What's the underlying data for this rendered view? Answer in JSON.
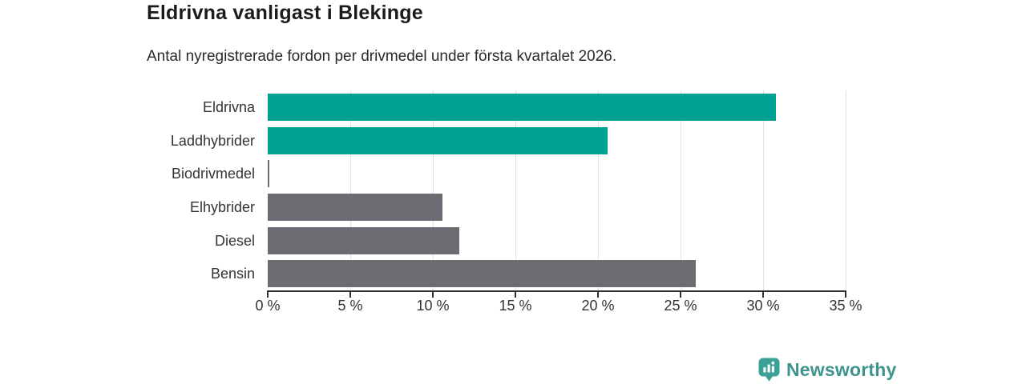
{
  "header": {
    "title": "Eldrivna vanligast i Blekinge",
    "subtitle": "Antal nyregistrerade fordon per drivmedel under första kvartalet 2026."
  },
  "chart_data": {
    "type": "bar",
    "orientation": "horizontal",
    "title": "Eldrivna vanligast i Blekinge",
    "subtitle": "Antal nyregistrerade fordon per drivmedel under första kvartalet 2026.",
    "categories": [
      "Eldrivna",
      "Laddhybrider",
      "Biodrivmedel",
      "Elhybrider",
      "Diesel",
      "Bensin"
    ],
    "values": [
      30.8,
      20.6,
      0.1,
      10.6,
      11.6,
      25.9
    ],
    "bar_colors": [
      "#00a194",
      "#00a194",
      "#6e6c73",
      "#6e6c73",
      "#6e6c73",
      "#6e6c73"
    ],
    "highlight_color": "#00a194",
    "base_color": "#6e6c73",
    "xlim": [
      0,
      35
    ],
    "tick_values": [
      0,
      5,
      10,
      15,
      20,
      25,
      30,
      35
    ],
    "x_tick_labels": [
      "0 %",
      "5 %",
      "10 %",
      "15 %",
      "20 %",
      "25 %",
      "30 %",
      "35 %"
    ],
    "grid": "vertical",
    "legend": "none",
    "unit": "%"
  },
  "footer": {
    "brand": "Newsworthy",
    "brand_color": "#3d948d",
    "logo_icon": "newsworthy-pin-barchart-icon",
    "logo_icon_color": "#3ba198"
  }
}
